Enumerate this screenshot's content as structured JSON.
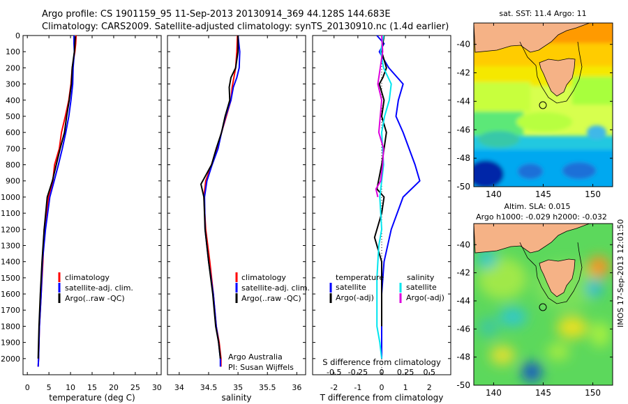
{
  "header": {
    "line1": "Argo profile: CS 1901159_95 11-Sep-2013 20130914_369 44.128S 144.683E",
    "line2": "Climatology: CARS2009. Satellite-adjusted climatology: synTS_20130910.nc (1.4d earlier)"
  },
  "side_label": "IMOS 17-Sep-2013 12:01:50",
  "colors": {
    "climatology": "#ff0000",
    "satellite": "#0000ff",
    "argo": "#000000",
    "sal_satellite": "#00e5ee",
    "sal_argo": "#dd00dd"
  },
  "chart_data": [
    {
      "type": "line",
      "ylim": [
        2100,
        0
      ],
      "yticks": [
        "0",
        "100",
        "200",
        "300",
        "400",
        "500",
        "600",
        "700",
        "800",
        "900",
        "1000",
        "1100",
        "1200",
        "1300",
        "1400",
        "1500",
        "1600",
        "1700",
        "1800",
        "1900",
        "2000"
      ],
      "xlabel": "temperature (deg C)",
      "xlim": [
        -1,
        31
      ],
      "xticks": [
        "0",
        "5",
        "10",
        "15",
        "20",
        "25",
        "30"
      ],
      "legend": [
        "climatology",
        "satellite-adj. clim.",
        "Argo(..raw -QC)"
      ],
      "series": [
        {
          "name": "climatology",
          "color": "#ff0000",
          "x": [
            11.3,
            11.2,
            11.0,
            10.4,
            10.1,
            9.6,
            8.8,
            7.9,
            7.4,
            6.3,
            5.9,
            4.9,
            3.9,
            3.6,
            3.2,
            2.8,
            2.6,
            2.5
          ],
          "y": [
            0,
            50,
            100,
            200,
            300,
            400,
            500,
            600,
            700,
            800,
            900,
            1000,
            1200,
            1400,
            1600,
            1800,
            2000,
            2050
          ]
        },
        {
          "name": "satellite-adj. clim.",
          "color": "#0000ff",
          "x": [
            10.8,
            10.8,
            10.9,
            10.6,
            10.5,
            10.1,
            9.6,
            8.9,
            8.1,
            7.2,
            6.2,
            5.2,
            4.2,
            3.5,
            3.2,
            2.8,
            2.6,
            2.5
          ],
          "y": [
            0,
            50,
            100,
            200,
            300,
            400,
            500,
            600,
            700,
            800,
            900,
            1000,
            1200,
            1400,
            1600,
            1800,
            2000,
            2050
          ]
        },
        {
          "name": "Argo(..raw -QC)",
          "color": "#000000",
          "x": [
            11.1,
            11.0,
            10.9,
            10.4,
            10.2,
            9.7,
            9.1,
            8.6,
            7.6,
            6.7,
            5.8,
            4.6,
            3.9,
            3.4,
            3.0,
            2.7,
            2.5
          ],
          "y": [
            5,
            50,
            100,
            200,
            300,
            400,
            500,
            600,
            700,
            800,
            900,
            1000,
            1200,
            1400,
            1600,
            1800,
            2000
          ]
        }
      ]
    },
    {
      "type": "line",
      "ylim": [
        2100,
        0
      ],
      "xlabel": "salinity",
      "xlim": [
        33.8,
        36.15
      ],
      "xticks": [
        "34",
        "34.5",
        "35",
        "35.5",
        "36"
      ],
      "legend": [
        "climatology",
        "satellite-adj. clim.",
        "Argo(..raw -QC)"
      ],
      "annotations": [
        "Argo Australia",
        "PI: Susan Wijffels"
      ],
      "series": [
        {
          "name": "climatology",
          "color": "#ff0000",
          "x": [
            34.99,
            34.98,
            34.96,
            34.93,
            34.9,
            34.88,
            34.8,
            34.72,
            34.65,
            34.55,
            34.45,
            34.42,
            34.45,
            34.52,
            34.58,
            34.63,
            34.68,
            34.71,
            34.71
          ],
          "y": [
            0,
            100,
            200,
            260,
            320,
            400,
            500,
            600,
            700,
            800,
            900,
            1000,
            1200,
            1400,
            1600,
            1800,
            1900,
            2000,
            2050
          ]
        },
        {
          "name": "satellite-adj. clim.",
          "color": "#0000ff",
          "x": [
            35.0,
            35.03,
            35.02,
            34.98,
            34.92,
            34.88,
            34.79,
            34.72,
            34.66,
            34.56,
            34.47,
            34.43,
            34.44,
            34.5,
            34.58,
            34.63,
            34.67,
            34.7,
            34.7
          ],
          "y": [
            0,
            100,
            200,
            260,
            320,
            400,
            500,
            600,
            700,
            800,
            900,
            1000,
            1200,
            1400,
            1600,
            1800,
            1900,
            2000,
            2050
          ]
        },
        {
          "name": "Argo(..raw -QC)",
          "color": "#000000",
          "x": [
            35.0,
            35.0,
            34.96,
            34.88,
            34.85,
            34.86,
            34.78,
            34.72,
            34.63,
            34.55,
            34.37,
            34.42,
            34.44,
            34.5,
            34.57,
            34.62,
            34.67,
            34.7
          ],
          "y": [
            0,
            100,
            200,
            260,
            320,
            400,
            500,
            600,
            700,
            800,
            920,
            1000,
            1200,
            1400,
            1600,
            1800,
            1900,
            2000
          ]
        }
      ]
    },
    {
      "type": "line",
      "ylim": [
        2100,
        0
      ],
      "xlabel": "T difference from climatology",
      "x2label": "S difference from climatology",
      "xlim": [
        -2.9,
        2.9
      ],
      "xticks": [
        "-2",
        "-1",
        "0",
        "1",
        "2"
      ],
      "x2ticks": [
        "-0.5",
        "-0.25",
        "0",
        "0.25",
        "0.5"
      ],
      "legend_titles": [
        "temperature",
        "salinity"
      ],
      "legend": [
        "satellite",
        "Argo(-adj)",
        "satellite",
        "Argo(-adj)"
      ],
      "series": [
        {
          "name": "satellite",
          "color": "#0000ff",
          "x": [
            -0.2,
            0.1,
            -0.1,
            0.3,
            0.9,
            0.7,
            0.6,
            0.9,
            1.4,
            1.6,
            0.9,
            0.4,
            0.1,
            0.0,
            0.0,
            0.0
          ],
          "y": [
            0,
            50,
            100,
            200,
            300,
            400,
            500,
            600,
            800,
            900,
            1000,
            1200,
            1400,
            1600,
            1800,
            2000
          ]
        },
        {
          "name": "Argo(-adj)",
          "color": "#000000",
          "x": [
            0.1,
            0.0,
            0.2,
            0.05,
            -0.1,
            0.1,
            0.0,
            0.2,
            0.0,
            -0.2,
            0.1,
            0.0,
            -0.3,
            0.0,
            0.0,
            0.0
          ],
          "y": [
            0,
            100,
            200,
            260,
            300,
            400,
            500,
            600,
            800,
            950,
            1000,
            1100,
            1250,
            1400,
            1600,
            1800
          ]
        },
        {
          "name": "sal satellite",
          "color": "#00e5ee",
          "x": [
            0.02,
            -0.01,
            0.02,
            0.1,
            0.08,
            0.03,
            0.0,
            0.02,
            -0.02,
            0.0,
            -0.03,
            -0.05,
            -0.05,
            -0.02,
            0.0
          ],
          "y": [
            0,
            100,
            200,
            300,
            400,
            500,
            600,
            800,
            1000,
            1200,
            1300,
            1500,
            1800,
            1900,
            2000
          ]
        },
        {
          "name": "sal Argo",
          "color": "#dd00dd",
          "x": [
            0.0,
            0.01,
            -0.04,
            0.0,
            -0.03,
            0.02,
            0.01,
            -0.01,
            -0.06,
            -0.04
          ],
          "y": [
            0,
            100,
            300,
            400,
            600,
            700,
            800,
            900,
            950,
            1000
          ]
        }
      ]
    },
    {
      "type": "heatmap",
      "title": "sat. SST: 11.4  Argo: 11",
      "xticks": [
        "140",
        "145",
        "150"
      ],
      "yticks": [
        "-40",
        "-42",
        "-44",
        "-46",
        "-48",
        "-50"
      ],
      "xlim": [
        138,
        152
      ],
      "ylim": [
        -50,
        -38.5
      ],
      "marker": [
        144.7,
        -44.1
      ]
    },
    {
      "type": "heatmap",
      "title": "Altim. SLA: 0.015",
      "subtitle": "Argo h1000: -0.029 h2000: -0.032",
      "xticks": [
        "140",
        "145",
        "150"
      ],
      "yticks": [
        "-40",
        "-42",
        "-44",
        "-46",
        "-48",
        "-50"
      ],
      "xlim": [
        138,
        152
      ],
      "ylim": [
        -50,
        -38.5
      ],
      "marker": [
        144.7,
        -44.1
      ]
    }
  ]
}
